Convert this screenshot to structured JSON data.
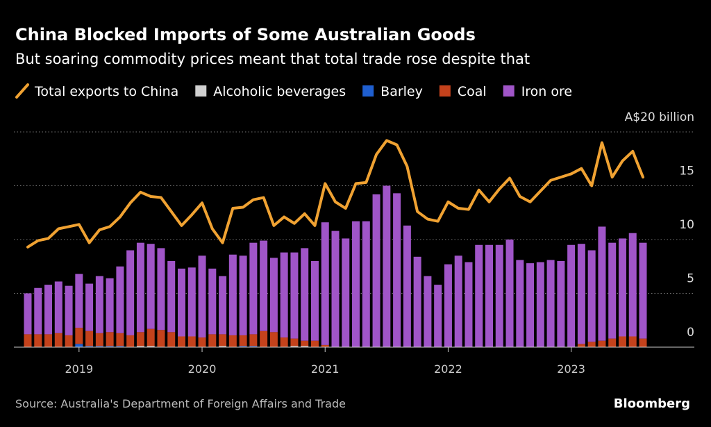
{
  "chart_data": {
    "type": "bar",
    "stacked": true,
    "title": "China Blocked Imports of Some Australian Goods",
    "subtitle": "But soaring commodity prices meant that total trade rose despite that",
    "source": "Source: Australia's Department of Foreign Affairs and Trade",
    "credit": "Bloomberg",
    "categories": [
      null,
      null,
      null,
      null,
      null,
      "2019",
      null,
      null,
      null,
      null,
      null,
      null,
      null,
      null,
      null,
      null,
      null,
      "2020",
      null,
      null,
      null,
      null,
      null,
      null,
      null,
      null,
      null,
      null,
      null,
      "2021",
      null,
      null,
      null,
      null,
      null,
      null,
      null,
      null,
      null,
      null,
      null,
      "2022",
      null,
      null,
      null,
      null,
      null,
      null,
      null,
      null,
      null,
      null,
      null,
      "2023",
      null,
      null,
      null,
      null,
      null,
      null,
      null
    ],
    "ylim": [
      0,
      20
    ],
    "yticks": [
      0,
      5,
      10,
      15,
      {
        "value": 20,
        "label": "A$20 billion"
      }
    ],
    "grid": true,
    "series": [
      {
        "name": "Total exports to China",
        "type": "line",
        "color": "#f0a232",
        "values": [
          9.3,
          9.9,
          10.1,
          11.0,
          11.2,
          11.4,
          9.7,
          10.9,
          11.2,
          12.1,
          13.4,
          14.4,
          14.0,
          13.9,
          12.6,
          11.3,
          12.3,
          13.4,
          11.0,
          9.7,
          12.9,
          13.0,
          13.7,
          13.9,
          11.3,
          12.1,
          11.5,
          12.4,
          11.3,
          15.2,
          13.5,
          12.9,
          15.2,
          15.3,
          17.9,
          19.2,
          18.8,
          16.8,
          12.6,
          11.9,
          11.7,
          13.5,
          12.9,
          12.8,
          14.6,
          13.5,
          14.7,
          15.7,
          14.0,
          13.5,
          14.5,
          15.5,
          15.8,
          16.1,
          16.6,
          15.0,
          19.0,
          15.8,
          17.3,
          18.2,
          15.8
        ]
      },
      {
        "name": "Alcoholic beverages",
        "color": "#d0d0d0",
        "values": [
          0,
          0,
          0,
          0,
          0,
          0,
          0,
          0,
          0,
          0,
          0,
          0.1,
          0.1,
          0,
          0,
          0,
          0,
          0,
          0,
          0.1,
          0,
          0,
          0,
          0,
          0,
          0,
          0.1,
          0.1,
          0,
          0,
          0,
          0,
          0,
          0,
          0,
          0,
          0,
          0,
          0,
          0,
          0,
          0,
          0,
          0,
          0,
          0,
          0,
          0,
          0,
          0,
          0,
          0,
          0,
          0,
          0,
          0,
          0,
          0,
          0,
          0,
          0
        ]
      },
      {
        "name": "Barley",
        "color": "#1f5fd0",
        "values": [
          0,
          0,
          0,
          0,
          0,
          0.3,
          0.1,
          0.1,
          0.1,
          0.1,
          0,
          0,
          0,
          0,
          0,
          0,
          0,
          0,
          0,
          0,
          0,
          0.1,
          0.1,
          0,
          0,
          0,
          0,
          0,
          0,
          0,
          0,
          0,
          0,
          0,
          0,
          0,
          0,
          0,
          0,
          0,
          0,
          0,
          0,
          0,
          0,
          0,
          0,
          0,
          0,
          0,
          0,
          0,
          0,
          0,
          0,
          0,
          0,
          0,
          0,
          0,
          0
        ]
      },
      {
        "name": "Coal",
        "color": "#c4421c",
        "values": [
          1.2,
          1.2,
          1.2,
          1.3,
          1.1,
          1.5,
          1.4,
          1.2,
          1.3,
          1.2,
          1.1,
          1.3,
          1.6,
          1.6,
          1.4,
          1.0,
          1.0,
          0.9,
          1.2,
          1.1,
          1.1,
          1.0,
          1.1,
          1.5,
          1.4,
          0.9,
          0.7,
          0.5,
          0.6,
          0.2,
          0,
          0,
          0,
          0,
          0,
          0,
          0,
          0,
          0,
          0,
          0,
          0,
          0,
          0,
          0,
          0,
          0,
          0,
          0,
          0,
          0,
          0,
          0,
          0,
          0.3,
          0.5,
          0.6,
          0.8,
          1.0,
          1.0,
          0.8
        ]
      },
      {
        "name": "Iron ore",
        "color": "#a055c8",
        "values": [
          3.8,
          4.3,
          4.6,
          4.8,
          4.6,
          5.0,
          4.4,
          5.3,
          5.0,
          6.2,
          7.9,
          8.3,
          7.9,
          7.6,
          6.6,
          6.3,
          6.4,
          7.6,
          6.1,
          5.4,
          7.5,
          7.4,
          8.5,
          8.4,
          6.9,
          7.9,
          8.0,
          8.6,
          7.4,
          11.4,
          10.8,
          10.1,
          11.7,
          11.7,
          14.2,
          15.0,
          14.3,
          11.3,
          8.4,
          6.6,
          5.8,
          7.7,
          8.5,
          7.9,
          9.5,
          9.5,
          9.5,
          10.0,
          8.1,
          7.8,
          7.9,
          8.1,
          8.0,
          9.5,
          9.3,
          8.5,
          10.6,
          8.9,
          9.1,
          9.6,
          8.9
        ]
      }
    ]
  }
}
